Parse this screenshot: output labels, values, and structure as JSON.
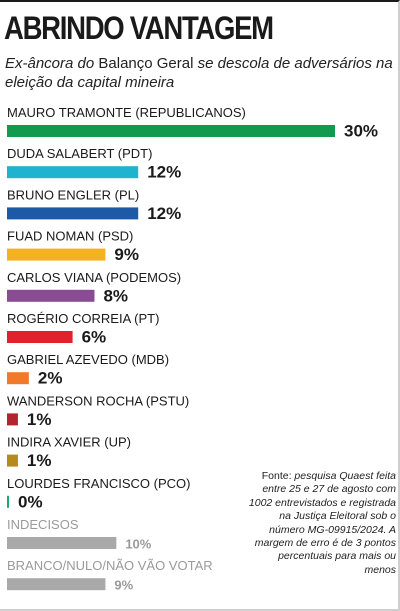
{
  "title": "ABRINDO VANTAGEM",
  "subtitle": {
    "before": "Ex-âncora do ",
    "program": "Balanço Geral",
    "after": " se descola de adversários na eleição da capital mineira"
  },
  "source_note": {
    "prefix": "Fonte:",
    "text": " pesquisa Quaest feita entre 25 e 27 de agosto com 1002 entrevistados e registrada na Justiça Eleitoral sob o número MG-09915/2024. A margem de erro é de 3 pontos percentuais para mais ou menos"
  },
  "chart_data": {
    "type": "bar",
    "orientation": "horizontal",
    "value_suffix": "%",
    "categories": [
      "MAURO TRAMONTE (REPUBLICANOS)",
      "DUDA SALABERT (PDT)",
      "BRUNO ENGLER (PL)",
      "FUAD NOMAN (PSD)",
      "CARLOS VIANA (PODEMOS)",
      "ROGÉRIO CORREIA (PT)",
      "GABRIEL AZEVEDO (MDB)",
      "WANDERSON ROCHA (PSTU)",
      "INDIRA XAVIER (UP)",
      "LOURDES FRANCISCO (PCO)",
      "INDECISOS",
      "BRANCO/NULO/NÃO VÃO VOTAR"
    ],
    "values": [
      30,
      12,
      12,
      9,
      8,
      6,
      2,
      1,
      1,
      0,
      10,
      9
    ],
    "labels": [
      "30%",
      "12%",
      "12%",
      "9%",
      "8%",
      "6%",
      "2%",
      "1%",
      "1%",
      "0%",
      "10%",
      "9%"
    ],
    "colors": [
      "#149a4f",
      "#1fb3cf",
      "#1c5aa6",
      "#f4b122",
      "#8a4b95",
      "#e0222a",
      "#f07a2a",
      "#b3252d",
      "#b68a1b",
      "#1fa86f",
      "#a9a9a9",
      "#a9a9a9"
    ],
    "muted": [
      false,
      false,
      false,
      false,
      false,
      false,
      false,
      false,
      false,
      false,
      true,
      true
    ],
    "xlim": [
      0,
      30
    ]
  }
}
